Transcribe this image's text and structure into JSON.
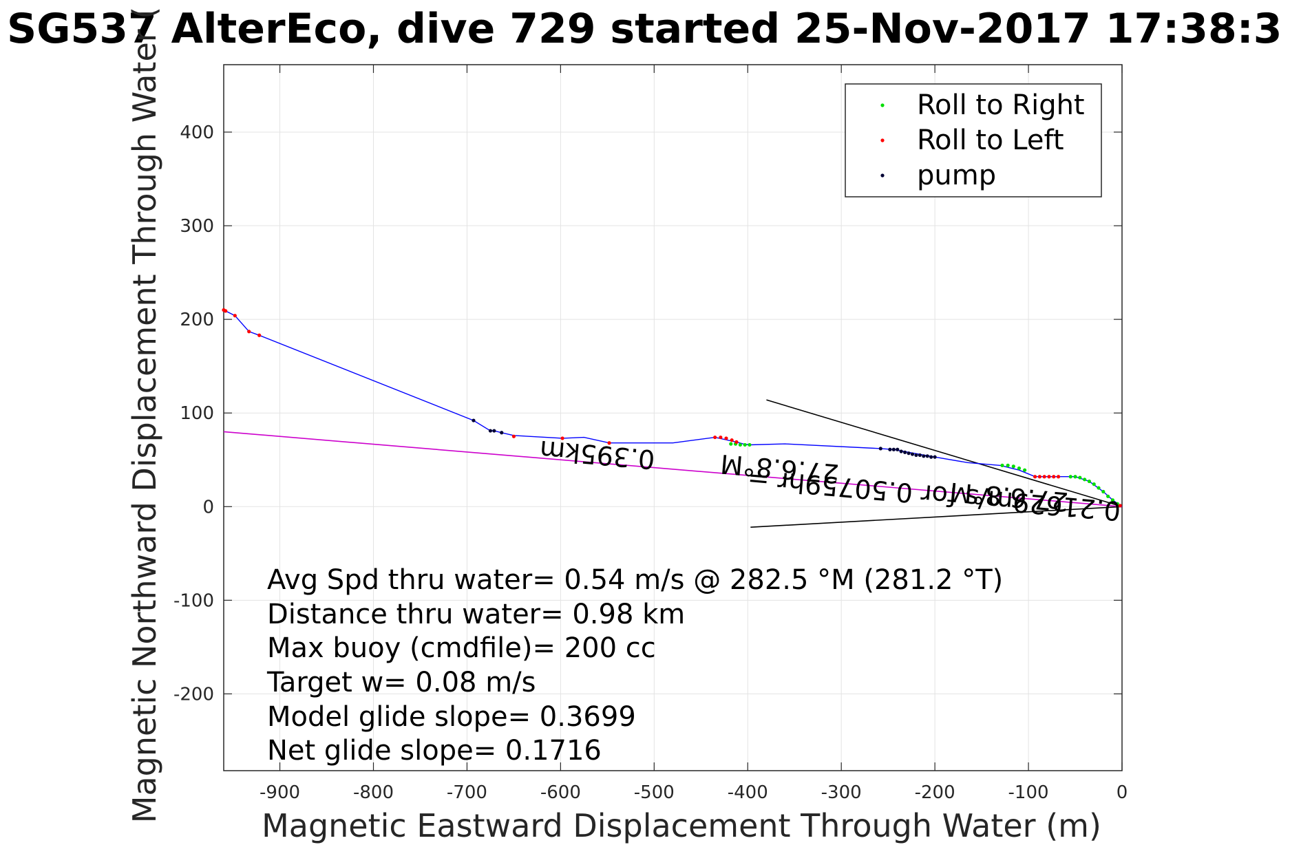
{
  "chart_data": {
    "type": "line",
    "title": "SG537 AlterEco, dive 729 started 25-Nov-2017 17:38:3",
    "xlabel": "Magnetic Eastward Displacement Through Water (m)",
    "ylabel": "Magnetic Northward Displacement Through Water (",
    "xlim": [
      -960,
      0
    ],
    "ylim": [
      -282,
      472
    ],
    "xticks": [
      -900,
      -800,
      -700,
      -600,
      -500,
      -400,
      -300,
      -200,
      -100,
      0
    ],
    "yticks": [
      -200,
      -100,
      0,
      100,
      200,
      300,
      400
    ],
    "grid": true,
    "legend_position": "top-right",
    "colors": {
      "track": "#0000ff",
      "roll_right": "#00dd00",
      "roll_left": "#ff0000",
      "pump": "#000033",
      "current_vector": "#cc00cc",
      "lines": "#000000"
    },
    "series": [
      {
        "name": "Roll to Right",
        "x": [
          -128,
          -122,
          -116,
          -110,
          -104,
          -55,
          -50,
          -45,
          -40,
          -35,
          -30,
          -25,
          -20,
          -15,
          -10,
          -5,
          -418,
          -413,
          -408,
          -403,
          -398
        ],
        "y": [
          44,
          44,
          43,
          41,
          39,
          32,
          32,
          31,
          29,
          27,
          24,
          20,
          16,
          11,
          7,
          3,
          67,
          67,
          66,
          66,
          66
        ]
      },
      {
        "name": "Roll to Left",
        "x": [
          -960,
          -958,
          -948,
          -933,
          -922,
          -650,
          -598,
          -548,
          -435,
          -429,
          -423,
          -417,
          -412,
          -93,
          -88,
          -83,
          -78,
          -73,
          -68,
          -2
        ],
        "y": [
          210,
          209,
          204,
          187,
          183,
          75,
          73,
          68,
          74,
          74,
          73,
          71,
          69,
          32,
          32,
          32,
          32,
          32,
          32,
          1
        ]
      },
      {
        "name": "pump",
        "x": [
          -693,
          -675,
          -671,
          -663,
          -258,
          -248,
          -244,
          -240,
          -236,
          -232,
          -228,
          -224,
          -220,
          -216,
          -212,
          -208,
          -204,
          -200
        ],
        "y": [
          92,
          81,
          81,
          79,
          62,
          61,
          61,
          61,
          59,
          58,
          57,
          56,
          55,
          55,
          54,
          54,
          53,
          53
        ]
      }
    ],
    "track": {
      "x": [
        -960,
        -948,
        -933,
        -922,
        -693,
        -675,
        -671,
        -663,
        -650,
        -598,
        -575,
        -548,
        -480,
        -435,
        -412,
        -405,
        -398,
        -360,
        -258,
        -244,
        -228,
        -200,
        -165,
        -130,
        -110,
        -93,
        -68,
        -50,
        -35,
        -20,
        -10,
        0
      ],
      "y": [
        210,
        204,
        187,
        183,
        92,
        81,
        81,
        79,
        76,
        73,
        74,
        68,
        68,
        74,
        69,
        67,
        66,
        67,
        62,
        61,
        58,
        53,
        47,
        44,
        39,
        32,
        32,
        32,
        27,
        16,
        7,
        0
      ]
    },
    "reference_lines": {
      "current_vector": {
        "x": [
          0,
          -960
        ],
        "y": [
          0,
          80
        ]
      },
      "cone_upper": {
        "x": [
          0,
          -380
        ],
        "y": [
          0,
          114
        ]
      },
      "cone_lower": {
        "x": [
          0,
          -397
        ],
        "y": [
          0,
          -22
        ]
      }
    },
    "annotations": {
      "labels_rotated": [
        {
          "text": "0.395km",
          "x": -560,
          "y": 65,
          "rotate": 185
        },
        {
          "text": "27.6.8°M",
          "x": -365,
          "y": 50,
          "rotate": 185
        },
        {
          "text": "0.21629m/s for 0.50759hr =",
          "x": -200,
          "y": 22,
          "rotate": 185
        },
        {
          "text": "27.6.8°M",
          "x": -120,
          "y": 20,
          "rotate": 185
        }
      ],
      "stats": [
        "Avg Spd thru water=  0.54 m/s @ 282.5 °M (281.2 °T)",
        "Distance thru water=  0.98 km",
        "Max buoy (cmdfile)= 200 cc",
        "Target w= 0.08 m/s",
        "Model glide slope= 0.3699",
        "Net glide slope= 0.1716"
      ]
    }
  }
}
